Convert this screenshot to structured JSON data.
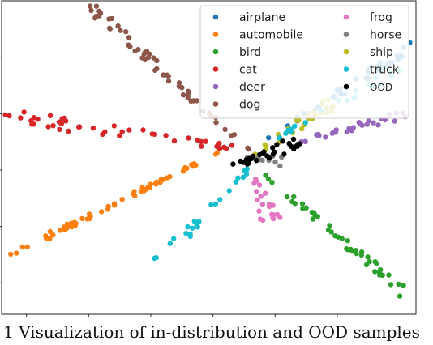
{
  "chart_data": {
    "type": "scatter",
    "title": "",
    "xlabel": "",
    "ylabel": "",
    "xlim": [
      0,
      1
    ],
    "ylim": [
      0,
      1
    ],
    "tick_labels_visible": false,
    "grid": false,
    "legend": {
      "placement": "top-right",
      "columns": 2,
      "entries": [
        {
          "name": "airplane",
          "color": "#1f77b4"
        },
        {
          "name": "automobile",
          "color": "#ff7f0e"
        },
        {
          "name": "bird",
          "color": "#2ca02c"
        },
        {
          "name": "cat",
          "color": "#d62728"
        },
        {
          "name": "deer",
          "color": "#9467bd"
        },
        {
          "name": "dog",
          "color": "#8c564b"
        },
        {
          "name": "frog",
          "color": "#e377c2"
        },
        {
          "name": "horse",
          "color": "#7f7f7f"
        },
        {
          "name": "ship",
          "color": "#bcbd22"
        },
        {
          "name": "truck",
          "color": "#17becf"
        },
        {
          "name": "OOD",
          "color": "#000000"
        }
      ]
    },
    "series": [
      {
        "name": "airplane",
        "color": "#1f77b4",
        "rays": [
          {
            "from": [
              0.63,
              0.55
            ],
            "to": [
              1.02,
              0.88
            ],
            "n": 38,
            "spread": 0.012
          }
        ]
      },
      {
        "name": "automobile",
        "color": "#ff7f0e",
        "rays": [
          {
            "from": [
              0.53,
              0.52
            ],
            "to": [
              0.02,
              0.19
            ],
            "n": 60,
            "spread": 0.008
          }
        ]
      },
      {
        "name": "bird",
        "color": "#2ca02c",
        "rays": [
          {
            "from": [
              0.62,
              0.46
            ],
            "to": [
              0.98,
              0.06
            ],
            "n": 45,
            "spread": 0.012
          }
        ]
      },
      {
        "name": "cat",
        "color": "#d62728",
        "rays": [
          {
            "from": [
              0.57,
              0.53
            ],
            "to": [
              -0.03,
              0.64
            ],
            "n": 48,
            "spread": 0.02
          }
        ]
      },
      {
        "name": "deer",
        "color": "#9467bd",
        "rays": [
          {
            "from": [
              0.68,
              0.54
            ],
            "to": [
              1.13,
              0.69
            ],
            "n": 48,
            "spread": 0.014
          }
        ]
      },
      {
        "name": "dog",
        "color": "#8c564b",
        "rays": [
          {
            "from": [
              0.6,
              0.52
            ],
            "to": [
              0.2,
              1.0
            ],
            "n": 55,
            "spread": 0.012
          }
        ]
      },
      {
        "name": "frog",
        "color": "#e377c2",
        "rays": [
          {
            "from": [
              0.6,
              0.46
            ],
            "to": [
              0.65,
              0.3
            ],
            "n": 22,
            "spread": 0.018
          }
        ]
      },
      {
        "name": "horse",
        "color": "#7f7f7f",
        "rays": [
          {
            "from": [
              0.58,
              0.5
            ],
            "to": [
              0.68,
              0.49
            ],
            "n": 12,
            "spread": 0.015
          }
        ]
      },
      {
        "name": "ship",
        "color": "#bcbd22",
        "rays": [
          {
            "from": [
              0.61,
              0.51
            ],
            "to": [
              0.8,
              0.68
            ],
            "n": 30,
            "spread": 0.018
          }
        ]
      },
      {
        "name": "truck",
        "color": "#17becf",
        "rays": [
          {
            "from": [
              0.6,
              0.47
            ],
            "to": [
              0.36,
              0.14
            ],
            "n": 24,
            "spread": 0.015
          },
          {
            "from": [
              0.66,
              0.56
            ],
            "to": [
              0.98,
              0.8
            ],
            "n": 22,
            "spread": 0.012
          }
        ]
      },
      {
        "name": "OOD",
        "color": "#000000",
        "rays": [
          {
            "from": [
              0.55,
              0.47
            ],
            "to": [
              0.72,
              0.55
            ],
            "n": 30,
            "spread": 0.018
          }
        ]
      }
    ]
  },
  "caption": "1 Visualization of in-distribution and OOD samples"
}
